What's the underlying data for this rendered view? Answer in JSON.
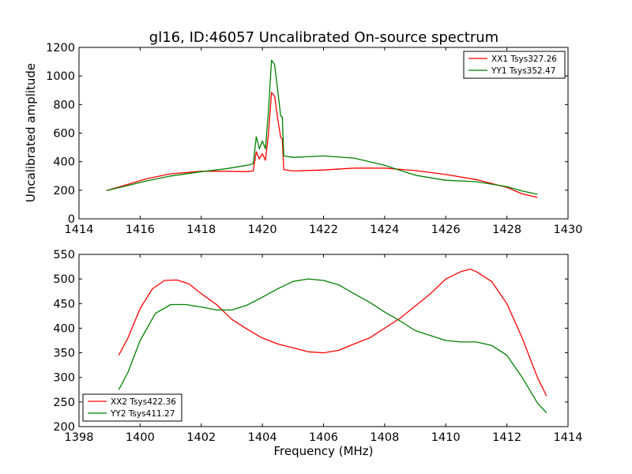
{
  "title": "gl16, ID:46057 Uncalibrated On-source spectrum",
  "chart_data": [
    {
      "type": "line",
      "ylabel": "Uncalibrated amplitude",
      "xlabel": "",
      "xlim": [
        1414,
        1430
      ],
      "ylim": [
        0,
        1200
      ],
      "xticks": [
        1414,
        1416,
        1418,
        1420,
        1422,
        1424,
        1426,
        1428,
        1430
      ],
      "yticks": [
        0,
        200,
        400,
        600,
        800,
        1000,
        1200
      ],
      "grid": false,
      "legend_position": "top-right",
      "series": [
        {
          "name": "XX1 Tsys327.26",
          "color": "#ff0000",
          "points": [
            [
              1414.9,
              198
            ],
            [
              1415.5,
              235
            ],
            [
              1416.2,
              280
            ],
            [
              1417.0,
              315
            ],
            [
              1418.0,
              333
            ],
            [
              1418.8,
              333
            ],
            [
              1419.5,
              330
            ],
            [
              1419.7,
              335
            ],
            [
              1419.8,
              470
            ],
            [
              1419.9,
              420
            ],
            [
              1420.0,
              455
            ],
            [
              1420.1,
              410
            ],
            [
              1420.2,
              600
            ],
            [
              1420.3,
              885
            ],
            [
              1420.4,
              860
            ],
            [
              1420.5,
              700
            ],
            [
              1420.6,
              570
            ],
            [
              1420.65,
              560
            ],
            [
              1420.7,
              345
            ],
            [
              1421.0,
              335
            ],
            [
              1422.0,
              342
            ],
            [
              1423.0,
              355
            ],
            [
              1424.0,
              355
            ],
            [
              1425.0,
              338
            ],
            [
              1426.0,
              310
            ],
            [
              1427.0,
              275
            ],
            [
              1428.0,
              220
            ],
            [
              1428.5,
              175
            ],
            [
              1429.0,
              150
            ]
          ]
        },
        {
          "name": "YY1 Tsys352.47",
          "color": "#008000",
          "points": [
            [
              1414.9,
              198
            ],
            [
              1415.5,
              228
            ],
            [
              1416.2,
              265
            ],
            [
              1417.0,
              300
            ],
            [
              1418.0,
              330
            ],
            [
              1418.8,
              350
            ],
            [
              1419.5,
              375
            ],
            [
              1419.7,
              385
            ],
            [
              1419.8,
              575
            ],
            [
              1419.9,
              490
            ],
            [
              1420.0,
              545
            ],
            [
              1420.1,
              490
            ],
            [
              1420.2,
              760
            ],
            [
              1420.3,
              1110
            ],
            [
              1420.4,
              1080
            ],
            [
              1420.5,
              900
            ],
            [
              1420.6,
              720
            ],
            [
              1420.65,
              715
            ],
            [
              1420.7,
              440
            ],
            [
              1421.0,
              430
            ],
            [
              1422.0,
              440
            ],
            [
              1423.0,
              425
            ],
            [
              1424.0,
              375
            ],
            [
              1425.0,
              305
            ],
            [
              1426.0,
              270
            ],
            [
              1427.0,
              260
            ],
            [
              1428.0,
              225
            ],
            [
              1428.5,
              195
            ],
            [
              1429.0,
              172
            ]
          ]
        }
      ]
    },
    {
      "type": "line",
      "ylabel": "",
      "xlabel": "Frequency (MHz)",
      "xlim": [
        1398,
        1414
      ],
      "ylim": [
        200,
        550
      ],
      "xticks": [
        1398,
        1400,
        1402,
        1404,
        1406,
        1408,
        1410,
        1412,
        1414
      ],
      "yticks": [
        200,
        250,
        300,
        350,
        400,
        450,
        500,
        550
      ],
      "grid": false,
      "legend_position": "bottom-left",
      "series": [
        {
          "name": "XX2 Tsys422.36",
          "color": "#ff0000",
          "points": [
            [
              1399.3,
              345
            ],
            [
              1399.6,
              380
            ],
            [
              1400.0,
              440
            ],
            [
              1400.4,
              480
            ],
            [
              1400.8,
              497
            ],
            [
              1401.2,
              498
            ],
            [
              1401.6,
              490
            ],
            [
              1402.0,
              470
            ],
            [
              1402.5,
              448
            ],
            [
              1403.0,
              418
            ],
            [
              1403.5,
              398
            ],
            [
              1404.0,
              380
            ],
            [
              1404.5,
              368
            ],
            [
              1405.0,
              360
            ],
            [
              1405.5,
              352
            ],
            [
              1406.0,
              350
            ],
            [
              1406.5,
              355
            ],
            [
              1407.0,
              368
            ],
            [
              1407.5,
              380
            ],
            [
              1408.0,
              400
            ],
            [
              1408.5,
              420
            ],
            [
              1409.0,
              445
            ],
            [
              1409.5,
              470
            ],
            [
              1410.0,
              500
            ],
            [
              1410.5,
              515
            ],
            [
              1410.8,
              520
            ],
            [
              1411.0,
              515
            ],
            [
              1411.5,
              495
            ],
            [
              1412.0,
              450
            ],
            [
              1412.5,
              380
            ],
            [
              1413.0,
              300
            ],
            [
              1413.3,
              262
            ]
          ]
        },
        {
          "name": "YY2 Tsys411.27",
          "color": "#008000",
          "points": [
            [
              1399.3,
              275
            ],
            [
              1399.6,
              310
            ],
            [
              1400.0,
              375
            ],
            [
              1400.5,
              430
            ],
            [
              1401.0,
              448
            ],
            [
              1401.5,
              448
            ],
            [
              1402.0,
              443
            ],
            [
              1402.5,
              437
            ],
            [
              1403.0,
              437
            ],
            [
              1403.5,
              447
            ],
            [
              1404.0,
              463
            ],
            [
              1404.5,
              480
            ],
            [
              1405.0,
              495
            ],
            [
              1405.5,
              500
            ],
            [
              1406.0,
              497
            ],
            [
              1406.5,
              488
            ],
            [
              1407.0,
              470
            ],
            [
              1407.5,
              453
            ],
            [
              1408.0,
              433
            ],
            [
              1408.5,
              415
            ],
            [
              1409.0,
              395
            ],
            [
              1409.5,
              385
            ],
            [
              1410.0,
              375
            ],
            [
              1410.5,
              372
            ],
            [
              1411.0,
              372
            ],
            [
              1411.5,
              365
            ],
            [
              1412.0,
              345
            ],
            [
              1412.5,
              300
            ],
            [
              1413.0,
              248
            ],
            [
              1413.3,
              228
            ]
          ]
        }
      ]
    }
  ]
}
